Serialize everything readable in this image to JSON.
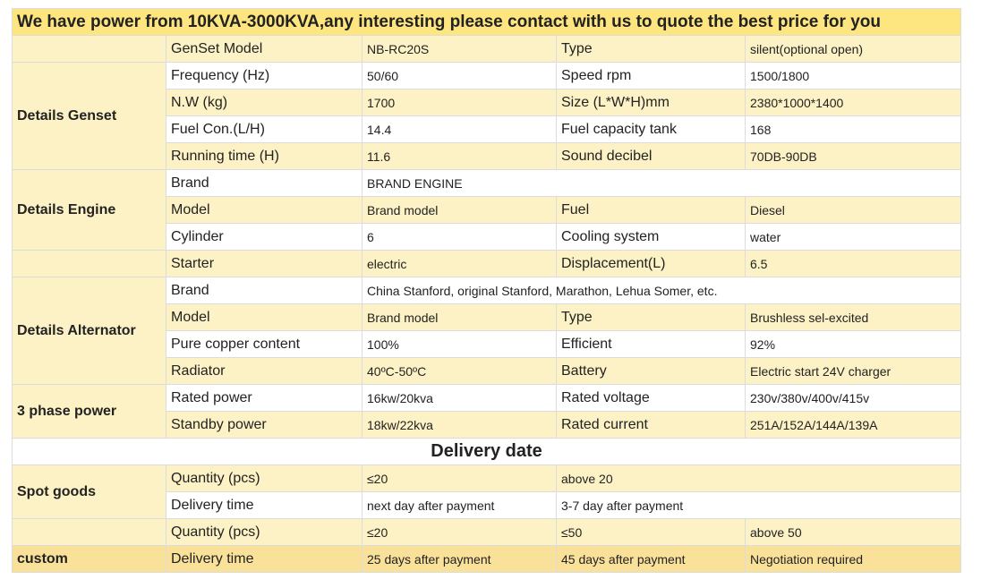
{
  "banner": "We have power from 10KVA-3000KVA,any interesting please contact with us to quote the best price for you",
  "genset": {
    "category": "Details Genset",
    "rows": [
      [
        "GenSet Model",
        "NB-RC20S",
        "Type",
        "silent(optional open)"
      ],
      [
        "Frequency (Hz)",
        "50/60",
        "Speed rpm",
        "1500/1800"
      ],
      [
        "N.W (kg)",
        "1700",
        "Size (L*W*H)mm",
        "2380*1000*1400"
      ],
      [
        "Fuel Con.(L/H)",
        "14.4",
        "Fuel capacity tank",
        "168"
      ],
      [
        "Running time (H)",
        "11.6",
        "Sound decibel",
        "70DB-90DB"
      ]
    ]
  },
  "engine": {
    "category": "Details Engine",
    "brand_label": "Brand",
    "brand_value": "BRAND ENGINE",
    "rows": [
      [
        "Model",
        "Brand model",
        "Fuel",
        "Diesel"
      ],
      [
        "Cylinder",
        "6",
        "Cooling system",
        "water"
      ],
      [
        "Starter",
        "electric",
        "Displacement(L)",
        "6.5"
      ]
    ]
  },
  "alternator": {
    "category": "Details Alternator",
    "brand_label": "Brand",
    "brand_value": "China Stanford, original Stanford, Marathon, Lehua Somer, etc.",
    "rows": [
      [
        "Model",
        "Brand model",
        "Type",
        "Brushless sel-excited"
      ],
      [
        "Pure copper content",
        "100%",
        "Efficient",
        "92%"
      ],
      [
        "Radiator",
        "40ºC-50ºC",
        "Battery",
        "Electric start 24V charger"
      ]
    ]
  },
  "phase": {
    "category": "3 phase power",
    "rows": [
      [
        "Rated power",
        "16kw/20kva",
        "Rated voltage",
        "230v/380v/400v/415v"
      ],
      [
        "Standby power",
        "18kw/22kva",
        "Rated current",
        "251A/152A/144A/139A"
      ]
    ]
  },
  "delivery_title": "Delivery date",
  "spot": {
    "category": "Spot goods",
    "qty_label": "Quantity (pcs)",
    "qty_1": "≤20",
    "qty_2": "above 20",
    "time_label": "Delivery time",
    "time_1": "next day after payment",
    "time_2": "3-7 day after payment"
  },
  "custom": {
    "category": "custom",
    "qty_label": "Quantity (pcs)",
    "qty_1": "≤20",
    "qty_2": "≤50",
    "qty_3": "above 50",
    "time_label": "Delivery time",
    "time_1": "25 days after payment",
    "time_2": "45 days after payment",
    "time_3": "Negotiation required"
  }
}
